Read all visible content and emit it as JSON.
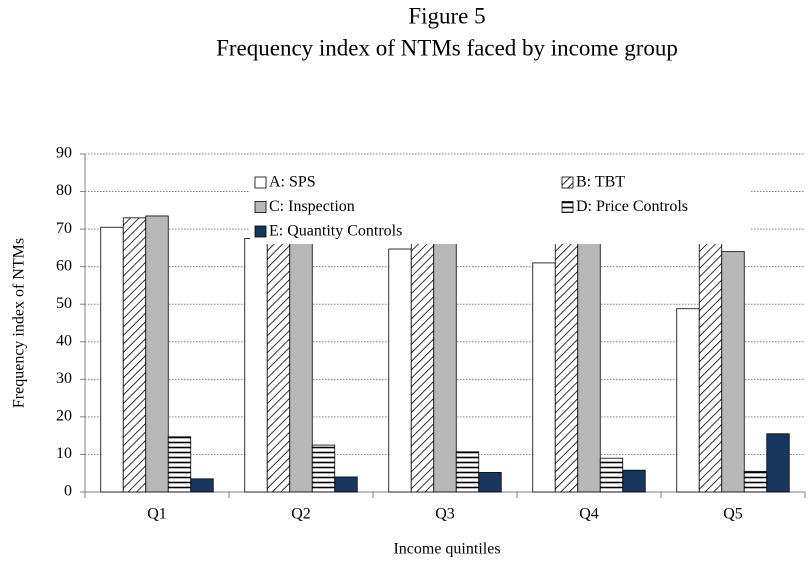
{
  "chart_data": {
    "type": "bar",
    "title": "Figure 5",
    "subtitle": "Frequency index of NTMs faced by income group",
    "x_label": "Income quintiles",
    "y_label": "Frequency index of NTMs",
    "categories": [
      "Q1",
      "Q2",
      "Q3",
      "Q4",
      "Q5"
    ],
    "series": [
      {
        "name": "A: SPS",
        "color": "#ffffff",
        "pattern": "none",
        "values": [
          70.5,
          67.5,
          64.7,
          61,
          48.8
        ]
      },
      {
        "name": "B: TBT",
        "color": "#ffffff",
        "pattern": "diagonal",
        "values": [
          73,
          75.2,
          77.2,
          79,
          83.2
        ]
      },
      {
        "name": "C: Inspection",
        "color": "#b8b8b8",
        "pattern": "none",
        "values": [
          73.5,
          71,
          69.2,
          66.5,
          64
        ]
      },
      {
        "name": "D: Price Controls",
        "color": "#ffffff",
        "pattern": "horizontal",
        "values": [
          14.7,
          12.5,
          10.7,
          9,
          5.5
        ]
      },
      {
        "name": "E: Quantity Controls",
        "color": "#17375e",
        "pattern": "none",
        "values": [
          3.5,
          4,
          5.2,
          5.8,
          15.5
        ]
      }
    ],
    "ylim": [
      0,
      90
    ],
    "yticks": [
      0,
      10,
      20,
      30,
      40,
      50,
      60,
      70,
      80,
      90
    ],
    "grid": true
  }
}
